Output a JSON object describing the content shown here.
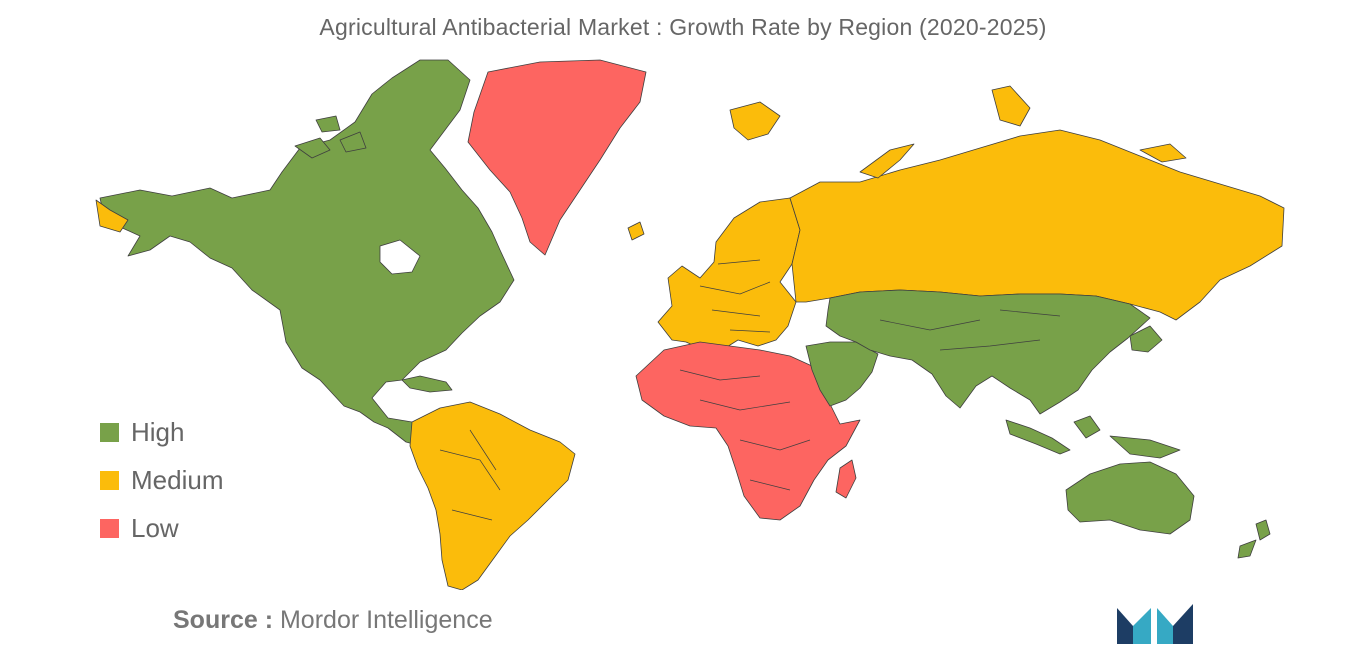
{
  "title": "Agricultural Antibacterial Market : Growth Rate by Region (2020-2025)",
  "legend": [
    {
      "label": "High",
      "color": "#78a149"
    },
    {
      "label": "Medium",
      "color": "#fbbc0b"
    },
    {
      "label": "Low",
      "color": "#fd6561"
    }
  ],
  "regions": [
    {
      "name": "North America",
      "level": "High"
    },
    {
      "name": "Greenland",
      "level": "Low"
    },
    {
      "name": "South America",
      "level": "Medium"
    },
    {
      "name": "Europe",
      "level": "Medium"
    },
    {
      "name": "Russia",
      "level": "Medium"
    },
    {
      "name": "Africa",
      "level": "Low"
    },
    {
      "name": "Middle East",
      "level": "High"
    },
    {
      "name": "Asia",
      "level": "High"
    },
    {
      "name": "Southeast Asia",
      "level": "High"
    },
    {
      "name": "Australia",
      "level": "High"
    },
    {
      "name": "New Zealand",
      "level": "High"
    },
    {
      "name": "Madagascar",
      "level": "Low"
    }
  ],
  "source": {
    "prefix": "Source :",
    "name": "Mordor Intelligence"
  },
  "logo": {
    "icon": "mordor-intelligence-logo",
    "colors": [
      "#1d3d64",
      "#36a9c4"
    ]
  }
}
